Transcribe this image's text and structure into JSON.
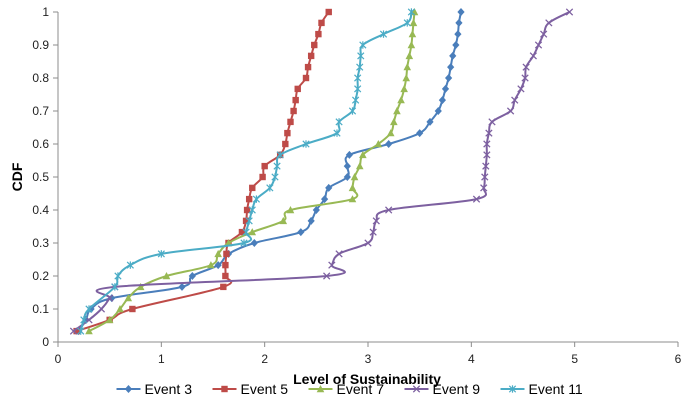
{
  "chart_data": {
    "type": "line",
    "title": "",
    "xlabel": "Level of Sustainability",
    "ylabel": "CDF",
    "xlim": [
      0,
      6
    ],
    "ylim": [
      0,
      1
    ],
    "xticks": [
      "0",
      "1",
      "2",
      "3",
      "4",
      "5",
      "6"
    ],
    "yticks": [
      "0",
      "0.1",
      "0.2",
      "0.3",
      "0.4",
      "0.5",
      "0.6",
      "0.7",
      "0.8",
      "0.9",
      "1"
    ],
    "grid": false,
    "legend_position": "bottom",
    "series": [
      {
        "name": "Event 3",
        "color": "#4a7ebb",
        "marker": "diamond",
        "points": [
          [
            0.2,
            0.033
          ],
          [
            0.27,
            0.067
          ],
          [
            0.32,
            0.1
          ],
          [
            0.52,
            0.133
          ],
          [
            1.2,
            0.167
          ],
          [
            1.3,
            0.2
          ],
          [
            1.55,
            0.233
          ],
          [
            1.65,
            0.267
          ],
          [
            1.9,
            0.3
          ],
          [
            2.35,
            0.333
          ],
          [
            2.45,
            0.367
          ],
          [
            2.5,
            0.4
          ],
          [
            2.58,
            0.433
          ],
          [
            2.62,
            0.467
          ],
          [
            2.8,
            0.5
          ],
          [
            2.8,
            0.533
          ],
          [
            2.82,
            0.567
          ],
          [
            3.2,
            0.6
          ],
          [
            3.5,
            0.633
          ],
          [
            3.6,
            0.667
          ],
          [
            3.68,
            0.7
          ],
          [
            3.72,
            0.733
          ],
          [
            3.75,
            0.767
          ],
          [
            3.78,
            0.8
          ],
          [
            3.8,
            0.833
          ],
          [
            3.82,
            0.867
          ],
          [
            3.85,
            0.9
          ],
          [
            3.87,
            0.933
          ],
          [
            3.88,
            0.967
          ],
          [
            3.9,
            1.0
          ]
        ]
      },
      {
        "name": "Event 5",
        "color": "#be4b48",
        "marker": "square",
        "points": [
          [
            0.18,
            0.033
          ],
          [
            0.5,
            0.067
          ],
          [
            0.72,
            0.1
          ],
          [
            1.6,
            0.167
          ],
          [
            1.62,
            0.2
          ],
          [
            1.62,
            0.233
          ],
          [
            1.63,
            0.267
          ],
          [
            1.65,
            0.3
          ],
          [
            1.78,
            0.333
          ],
          [
            1.82,
            0.367
          ],
          [
            1.83,
            0.4
          ],
          [
            1.85,
            0.433
          ],
          [
            1.88,
            0.467
          ],
          [
            1.98,
            0.5
          ],
          [
            2.0,
            0.533
          ],
          [
            2.15,
            0.567
          ],
          [
            2.2,
            0.6
          ],
          [
            2.22,
            0.633
          ],
          [
            2.25,
            0.667
          ],
          [
            2.28,
            0.7
          ],
          [
            2.3,
            0.733
          ],
          [
            2.32,
            0.767
          ],
          [
            2.4,
            0.8
          ],
          [
            2.42,
            0.833
          ],
          [
            2.45,
            0.867
          ],
          [
            2.48,
            0.9
          ],
          [
            2.52,
            0.933
          ],
          [
            2.55,
            0.967
          ],
          [
            2.62,
            1.0
          ]
        ]
      },
      {
        "name": "Event 7",
        "color": "#98b954",
        "marker": "triangle",
        "points": [
          [
            0.3,
            0.033
          ],
          [
            0.5,
            0.067
          ],
          [
            0.6,
            0.1
          ],
          [
            0.68,
            0.133
          ],
          [
            0.8,
            0.167
          ],
          [
            1.05,
            0.2
          ],
          [
            1.48,
            0.233
          ],
          [
            1.55,
            0.267
          ],
          [
            1.65,
            0.3
          ],
          [
            1.88,
            0.333
          ],
          [
            2.18,
            0.367
          ],
          [
            2.25,
            0.4
          ],
          [
            2.85,
            0.433
          ],
          [
            2.85,
            0.467
          ],
          [
            2.87,
            0.5
          ],
          [
            2.92,
            0.533
          ],
          [
            2.95,
            0.567
          ],
          [
            3.1,
            0.6
          ],
          [
            3.22,
            0.633
          ],
          [
            3.25,
            0.667
          ],
          [
            3.28,
            0.7
          ],
          [
            3.32,
            0.733
          ],
          [
            3.35,
            0.767
          ],
          [
            3.37,
            0.8
          ],
          [
            3.38,
            0.833
          ],
          [
            3.4,
            0.867
          ],
          [
            3.42,
            0.9
          ],
          [
            3.43,
            0.933
          ],
          [
            3.44,
            0.967
          ],
          [
            3.45,
            1.0
          ]
        ]
      },
      {
        "name": "Event 9",
        "color": "#7d60a0",
        "marker": "x",
        "points": [
          [
            0.15,
            0.033
          ],
          [
            0.3,
            0.067
          ],
          [
            0.42,
            0.1
          ],
          [
            0.5,
            0.133
          ],
          [
            0.55,
            0.167
          ],
          [
            2.6,
            0.2
          ],
          [
            2.65,
            0.233
          ],
          [
            2.72,
            0.267
          ],
          [
            3.0,
            0.3
          ],
          [
            3.05,
            0.333
          ],
          [
            3.08,
            0.367
          ],
          [
            3.2,
            0.4
          ],
          [
            4.05,
            0.433
          ],
          [
            4.12,
            0.467
          ],
          [
            4.13,
            0.5
          ],
          [
            4.14,
            0.533
          ],
          [
            4.15,
            0.567
          ],
          [
            4.15,
            0.6
          ],
          [
            4.17,
            0.633
          ],
          [
            4.2,
            0.667
          ],
          [
            4.38,
            0.7
          ],
          [
            4.42,
            0.733
          ],
          [
            4.48,
            0.767
          ],
          [
            4.52,
            0.8
          ],
          [
            4.53,
            0.833
          ],
          [
            4.6,
            0.867
          ],
          [
            4.65,
            0.9
          ],
          [
            4.7,
            0.933
          ],
          [
            4.75,
            0.967
          ],
          [
            4.95,
            1.0
          ]
        ]
      },
      {
        "name": "Event 11",
        "color": "#4bacc6",
        "marker": "star",
        "points": [
          [
            0.22,
            0.033
          ],
          [
            0.25,
            0.067
          ],
          [
            0.3,
            0.1
          ],
          [
            0.55,
            0.167
          ],
          [
            0.58,
            0.2
          ],
          [
            0.7,
            0.233
          ],
          [
            1.0,
            0.267
          ],
          [
            1.8,
            0.3
          ],
          [
            1.82,
            0.333
          ],
          [
            1.85,
            0.367
          ],
          [
            1.88,
            0.4
          ],
          [
            1.92,
            0.433
          ],
          [
            2.05,
            0.467
          ],
          [
            2.1,
            0.5
          ],
          [
            2.12,
            0.533
          ],
          [
            2.15,
            0.567
          ],
          [
            2.4,
            0.6
          ],
          [
            2.7,
            0.633
          ],
          [
            2.72,
            0.667
          ],
          [
            2.85,
            0.7
          ],
          [
            2.88,
            0.733
          ],
          [
            2.9,
            0.767
          ],
          [
            2.9,
            0.8
          ],
          [
            2.92,
            0.833
          ],
          [
            2.93,
            0.867
          ],
          [
            2.95,
            0.9
          ],
          [
            3.15,
            0.933
          ],
          [
            3.38,
            0.967
          ],
          [
            3.42,
            1.0
          ]
        ]
      }
    ]
  }
}
